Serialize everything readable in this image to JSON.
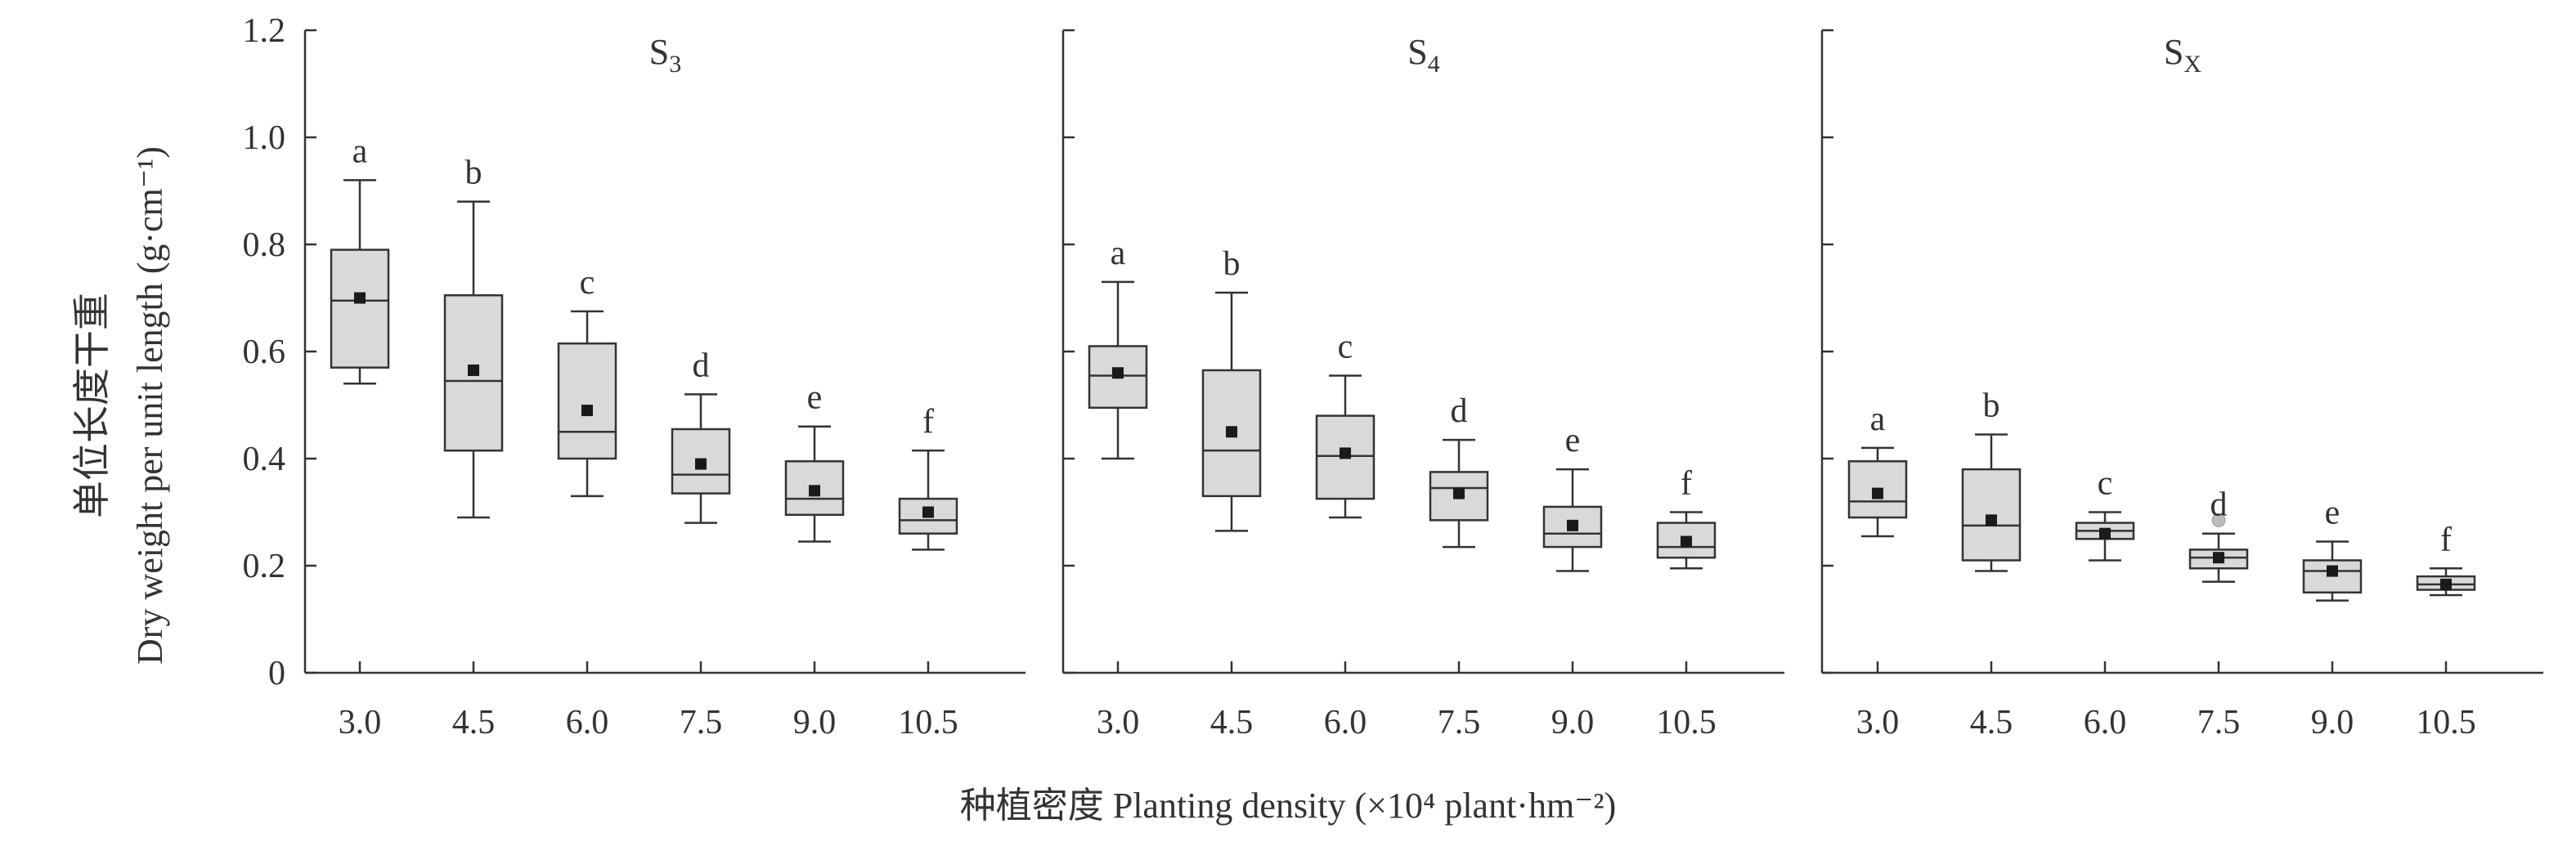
{
  "chart_data": {
    "type": "box",
    "y_axis": {
      "label_zh": "单位长度干重",
      "label_en": "Dry weight per unit length",
      "unit": "(g·cm⁻¹)",
      "ylim": [
        0,
        1.2
      ],
      "ticks": [
        "0",
        "0.2",
        "0.4",
        "0.6",
        "0.8",
        "1.0",
        "1.2"
      ]
    },
    "x_axis": {
      "label_zh": "种植密度",
      "label_en": "Planting density",
      "unit": "(×10⁴ plant·hm⁻²)",
      "categories": [
        "3.0",
        "4.5",
        "6.0",
        "7.5",
        "9.0",
        "10.5"
      ]
    },
    "colors": {
      "box_fill": "#d9d9d9",
      "stroke": "#333333",
      "mean": "#1a1a1a",
      "outlier": "#bbbbbb"
    },
    "panels": [
      {
        "title_main": "S",
        "title_sub": "3",
        "letters": [
          "a",
          "b",
          "c",
          "d",
          "e",
          "f"
        ],
        "boxes": [
          {
            "min": 0.54,
            "q1": 0.57,
            "median": 0.695,
            "q3": 0.79,
            "max": 0.92,
            "mean": 0.7
          },
          {
            "min": 0.29,
            "q1": 0.415,
            "median": 0.545,
            "q3": 0.705,
            "max": 0.88,
            "mean": 0.565
          },
          {
            "min": 0.33,
            "q1": 0.4,
            "median": 0.45,
            "q3": 0.615,
            "max": 0.675,
            "mean": 0.49
          },
          {
            "min": 0.28,
            "q1": 0.335,
            "median": 0.37,
            "q3": 0.455,
            "max": 0.52,
            "mean": 0.39
          },
          {
            "min": 0.245,
            "q1": 0.295,
            "median": 0.325,
            "q3": 0.395,
            "max": 0.46,
            "mean": 0.34
          },
          {
            "min": 0.23,
            "q1": 0.26,
            "median": 0.285,
            "q3": 0.325,
            "max": 0.415,
            "mean": 0.3
          }
        ]
      },
      {
        "title_main": "S",
        "title_sub": "4",
        "letters": [
          "a",
          "b",
          "c",
          "d",
          "e",
          "f"
        ],
        "boxes": [
          {
            "min": 0.4,
            "q1": 0.495,
            "median": 0.555,
            "q3": 0.61,
            "max": 0.73,
            "mean": 0.56
          },
          {
            "min": 0.265,
            "q1": 0.33,
            "median": 0.415,
            "q3": 0.565,
            "max": 0.71,
            "mean": 0.45
          },
          {
            "min": 0.29,
            "q1": 0.325,
            "median": 0.405,
            "q3": 0.48,
            "max": 0.555,
            "mean": 0.41
          },
          {
            "min": 0.235,
            "q1": 0.285,
            "median": 0.345,
            "q3": 0.375,
            "max": 0.435,
            "mean": 0.335
          },
          {
            "min": 0.19,
            "q1": 0.235,
            "median": 0.26,
            "q3": 0.31,
            "max": 0.38,
            "mean": 0.275
          },
          {
            "min": 0.195,
            "q1": 0.215,
            "median": 0.235,
            "q3": 0.28,
            "max": 0.3,
            "mean": 0.245
          }
        ]
      },
      {
        "title_main": "S",
        "title_sub": "X",
        "letters": [
          "a",
          "b",
          "c",
          "d",
          "e",
          "f"
        ],
        "boxes": [
          {
            "min": 0.255,
            "q1": 0.29,
            "median": 0.32,
            "q3": 0.395,
            "max": 0.42,
            "mean": 0.335
          },
          {
            "min": 0.19,
            "q1": 0.21,
            "median": 0.275,
            "q3": 0.38,
            "max": 0.445,
            "mean": 0.285
          },
          {
            "min": 0.21,
            "q1": 0.25,
            "median": 0.265,
            "q3": 0.28,
            "max": 0.3,
            "mean": 0.26
          },
          {
            "min": 0.17,
            "q1": 0.195,
            "median": 0.215,
            "q3": 0.23,
            "max": 0.26,
            "mean": 0.215,
            "outliers": [
              0.285
            ]
          },
          {
            "min": 0.135,
            "q1": 0.15,
            "median": 0.19,
            "q3": 0.21,
            "max": 0.245,
            "mean": 0.19
          },
          {
            "min": 0.145,
            "q1": 0.155,
            "median": 0.165,
            "q3": 0.18,
            "max": 0.195,
            "mean": 0.165
          }
        ]
      }
    ]
  }
}
